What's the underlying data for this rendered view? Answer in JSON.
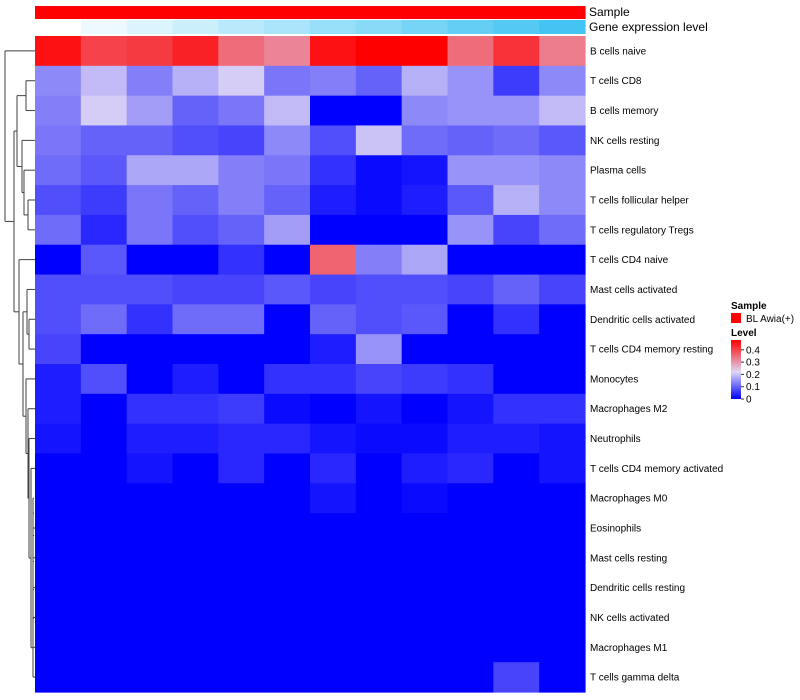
{
  "chart_data": {
    "type": "heatmap",
    "title": "",
    "column_annotations": {
      "sample_label": "Sample",
      "expression_label": "Gene expression level"
    },
    "rows": [
      "B cells naive",
      "T cells CD8",
      "B cells memory",
      "NK cells resting",
      "Plasma cells",
      "T cells follicular helper",
      "T cells regulatory  Tregs",
      "T cells CD4 naive",
      "Mast cells activated",
      "Dendritic cells activated",
      "T cells CD4 memory resting",
      "Monocytes",
      "Macrophages M2",
      "Neutrophils",
      "T cells CD4 memory activated",
      "Macrophages M0",
      "Eosinophils",
      "Mast cells resting",
      "Dendritic cells resting",
      "NK cells activated",
      "Macrophages M1",
      "T cells gamma delta"
    ],
    "values": [
      [
        0.46,
        0.4,
        0.41,
        0.44,
        0.35,
        0.32,
        0.46,
        0.48,
        0.48,
        0.35,
        0.42,
        0.33
      ],
      [
        0.14,
        0.19,
        0.13,
        0.18,
        0.21,
        0.12,
        0.13,
        0.1,
        0.18,
        0.15,
        0.06,
        0.14
      ],
      [
        0.13,
        0.21,
        0.16,
        0.1,
        0.12,
        0.19,
        0.0,
        0.0,
        0.14,
        0.15,
        0.15,
        0.19
      ],
      [
        0.12,
        0.1,
        0.1,
        0.08,
        0.07,
        0.14,
        0.08,
        0.2,
        0.11,
        0.1,
        0.11,
        0.09
      ],
      [
        0.11,
        0.09,
        0.17,
        0.17,
        0.13,
        0.12,
        0.05,
        0.01,
        0.02,
        0.15,
        0.15,
        0.14
      ],
      [
        0.08,
        0.06,
        0.12,
        0.1,
        0.13,
        0.1,
        0.03,
        0.01,
        0.03,
        0.09,
        0.18,
        0.14
      ],
      [
        0.11,
        0.04,
        0.12,
        0.08,
        0.1,
        0.16,
        0.0,
        0.0,
        0.0,
        0.15,
        0.07,
        0.11
      ],
      [
        0.0,
        0.09,
        0.0,
        0.0,
        0.05,
        0.0,
        0.36,
        0.13,
        0.17,
        0.0,
        0.0,
        0.0
      ],
      [
        0.08,
        0.08,
        0.08,
        0.07,
        0.07,
        0.09,
        0.07,
        0.08,
        0.08,
        0.07,
        0.1,
        0.07
      ],
      [
        0.08,
        0.11,
        0.05,
        0.11,
        0.11,
        0.0,
        0.1,
        0.08,
        0.09,
        0.0,
        0.05,
        0.0
      ],
      [
        0.07,
        0.0,
        0.0,
        0.0,
        0.0,
        0.0,
        0.03,
        0.15,
        0.0,
        0.0,
        0.0,
        0.0
      ],
      [
        0.03,
        0.08,
        0.0,
        0.03,
        0.0,
        0.05,
        0.05,
        0.07,
        0.06,
        0.05,
        0.0,
        0.0
      ],
      [
        0.03,
        0.0,
        0.05,
        0.05,
        0.06,
        0.01,
        0.0,
        0.02,
        0.0,
        0.02,
        0.05,
        0.05
      ],
      [
        0.02,
        0.0,
        0.03,
        0.03,
        0.04,
        0.04,
        0.02,
        0.01,
        0.01,
        0.03,
        0.03,
        0.02
      ],
      [
        0.0,
        0.0,
        0.02,
        0.0,
        0.04,
        0.0,
        0.04,
        0.0,
        0.03,
        0.04,
        0.0,
        0.02
      ],
      [
        0.0,
        0.0,
        0.0,
        0.0,
        0.0,
        0.0,
        0.02,
        0.0,
        0.01,
        0.0,
        0.0,
        0.0
      ],
      [
        0.0,
        0.0,
        0.0,
        0.0,
        0.0,
        0.0,
        0.0,
        0.0,
        0.0,
        0.0,
        0.0,
        0.0
      ],
      [
        0.0,
        0.0,
        0.0,
        0.0,
        0.0,
        0.0,
        0.0,
        0.0,
        0.0,
        0.0,
        0.0,
        0.0
      ],
      [
        0.0,
        0.0,
        0.0,
        0.0,
        0.0,
        0.0,
        0.0,
        0.0,
        0.0,
        0.0,
        0.0,
        0.0
      ],
      [
        0.0,
        0.0,
        0.0,
        0.0,
        0.0,
        0.0,
        0.0,
        0.0,
        0.0,
        0.0,
        0.0,
        0.0
      ],
      [
        0.0,
        0.0,
        0.0,
        0.0,
        0.0,
        0.0,
        0.0,
        0.0,
        0.0,
        0.0,
        0.0,
        0.0
      ],
      [
        0.0,
        0.0,
        0.0,
        0.0,
        0.0,
        0.0,
        0.0,
        0.0,
        0.0,
        0.0,
        0.07,
        0.0
      ]
    ],
    "expression_level_annotation": [
      0.0,
      0.1,
      0.2,
      0.29,
      0.39,
      0.49,
      0.59,
      0.68,
      0.78,
      0.88,
      0.98,
      1.07
    ],
    "color_scale": {
      "low": "#0000ff",
      "mid": "#dfd7f4",
      "high": "#ff0000",
      "min": 0,
      "max": 0.48,
      "mid_value": 0.22
    },
    "legend": {
      "sample_title": "Sample",
      "sample_entry": "BL Awia(+)",
      "sample_color": "#ff0000",
      "level_title": "Level",
      "level_ticks": [
        "0.4",
        "0.3",
        "0.2",
        "0.1",
        "0"
      ],
      "level_tick_values": [
        0.4,
        0.3,
        0.2,
        0.1,
        0
      ],
      "placement": "right"
    },
    "row_dendrogram": true,
    "column_dendrogram": false,
    "expression_annotation_colors": {
      "low": "#ffffff",
      "high": "#43c4f3"
    }
  }
}
